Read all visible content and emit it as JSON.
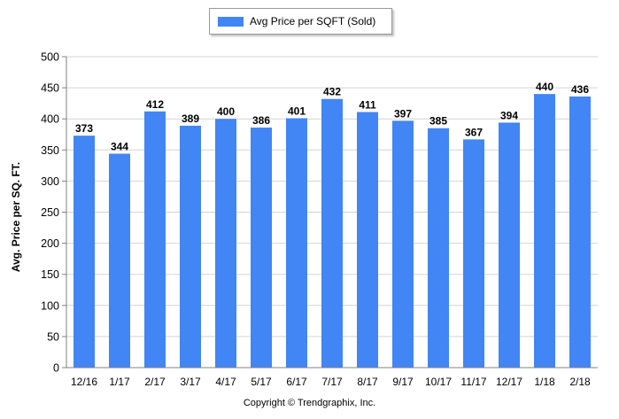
{
  "chart_data": {
    "type": "bar",
    "title": "",
    "xlabel": "",
    "ylabel": "Avg. Price per SQ. FT.",
    "ylim": [
      0,
      500
    ],
    "yticks": [
      0,
      50,
      100,
      150,
      200,
      250,
      300,
      350,
      400,
      450,
      500
    ],
    "grid": true,
    "legend_position": "top-center",
    "categories": [
      "12/16",
      "1/17",
      "2/17",
      "3/17",
      "4/17",
      "5/17",
      "6/17",
      "7/17",
      "8/17",
      "9/17",
      "10/17",
      "11/17",
      "12/17",
      "1/18",
      "2/18"
    ],
    "series": [
      {
        "name": "Avg Price per SQFT (Sold)",
        "color": "#4285f4",
        "values": [
          373,
          344,
          412,
          389,
          400,
          386,
          401,
          432,
          411,
          397,
          385,
          367,
          394,
          440,
          436
        ]
      }
    ]
  },
  "footer": {
    "copyright": "Copyright © Trendgraphix, Inc."
  }
}
